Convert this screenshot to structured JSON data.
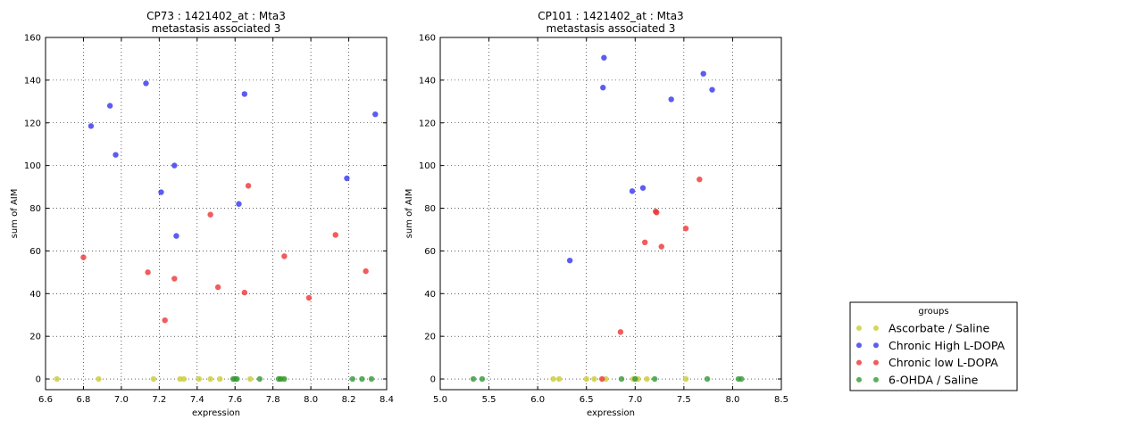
{
  "legend": {
    "title": "groups",
    "placement": "lower-right (outside plots)",
    "entries": [
      {
        "label": "Ascorbate / Saline",
        "color": "#cccc33"
      },
      {
        "label": "Chronic High L-DOPA",
        "color": "#3333ee"
      },
      {
        "label": "Chronic low L-DOPA",
        "color": "#ee3333"
      },
      {
        "label": "6-OHDA / Saline",
        "color": "#339933"
      }
    ]
  },
  "chart_data": [
    {
      "type": "scatter",
      "title": "CP73 : 1421402_at : Mta3",
      "subtitle": "metastasis associated 3",
      "xlabel": "expression",
      "ylabel": "sum of AIM",
      "xlim": [
        6.6,
        8.4
      ],
      "ylim": [
        -5,
        160
      ],
      "xticks": [
        6.6,
        6.8,
        7.0,
        7.2,
        7.4,
        7.6,
        7.8,
        8.0,
        8.2,
        8.4
      ],
      "xtick_labels": [
        "6.6",
        "6.8",
        "7.0",
        "7.2",
        "7.4",
        "7.6",
        "7.8",
        "8.0",
        "8.2",
        "8.4"
      ],
      "yticks": [
        0,
        20,
        40,
        60,
        80,
        100,
        120,
        140,
        160
      ],
      "ytick_labels": [
        "0",
        "20",
        "40",
        "60",
        "80",
        "100",
        "120",
        "140",
        "160"
      ],
      "grid": true,
      "series": [
        {
          "name": "Ascorbate / Saline",
          "color": "#cccc33",
          "points": [
            [
              6.66,
              0
            ],
            [
              6.88,
              0
            ],
            [
              7.17,
              0
            ],
            [
              7.31,
              0
            ],
            [
              7.33,
              0
            ],
            [
              7.41,
              0
            ],
            [
              7.47,
              0
            ],
            [
              7.52,
              0
            ],
            [
              7.68,
              0
            ],
            [
              7.85,
              0
            ]
          ]
        },
        {
          "name": "Chronic High L-DOPA",
          "color": "#3333ee",
          "points": [
            [
              6.84,
              118.5
            ],
            [
              6.94,
              128
            ],
            [
              6.97,
              105
            ],
            [
              7.13,
              138.5
            ],
            [
              7.21,
              87.5
            ],
            [
              7.28,
              100
            ],
            [
              7.29,
              67
            ],
            [
              7.62,
              82
            ],
            [
              7.65,
              133.5
            ],
            [
              8.19,
              94
            ],
            [
              8.34,
              124
            ]
          ]
        },
        {
          "name": "Chronic low L-DOPA",
          "color": "#ee3333",
          "points": [
            [
              6.8,
              57
            ],
            [
              7.14,
              50
            ],
            [
              7.23,
              27.5
            ],
            [
              7.28,
              47
            ],
            [
              7.47,
              77
            ],
            [
              7.51,
              43
            ],
            [
              7.65,
              40.5
            ],
            [
              7.67,
              90.5
            ],
            [
              7.86,
              57.5
            ],
            [
              7.99,
              38
            ],
            [
              8.13,
              67.5
            ],
            [
              8.29,
              50.5
            ]
          ]
        },
        {
          "name": "6-OHDA / Saline",
          "color": "#339933",
          "points": [
            [
              7.59,
              0
            ],
            [
              7.6,
              0
            ],
            [
              7.61,
              0
            ],
            [
              7.73,
              0
            ],
            [
              7.83,
              0
            ],
            [
              7.84,
              0
            ],
            [
              7.86,
              0
            ],
            [
              8.22,
              0
            ],
            [
              8.27,
              0
            ],
            [
              8.32,
              0
            ]
          ]
        }
      ]
    },
    {
      "type": "scatter",
      "title": "CP101 : 1421402_at : Mta3",
      "subtitle": "metastasis associated 3",
      "xlabel": "expression",
      "ylabel": "sum of AIM",
      "xlim": [
        5.0,
        8.5
      ],
      "ylim": [
        -5,
        160
      ],
      "xticks": [
        5.0,
        5.5,
        6.0,
        6.5,
        7.0,
        7.5,
        8.0,
        8.5
      ],
      "xtick_labels": [
        "5.0",
        "5.5",
        "6.0",
        "6.5",
        "7.0",
        "7.5",
        "8.0",
        "8.5"
      ],
      "yticks": [
        0,
        20,
        40,
        60,
        80,
        100,
        120,
        140,
        160
      ],
      "ytick_labels": [
        "0",
        "20",
        "40",
        "60",
        "80",
        "100",
        "120",
        "140",
        "160"
      ],
      "grid": true,
      "series": [
        {
          "name": "Ascorbate / Saline",
          "color": "#cccc33",
          "points": [
            [
              6.16,
              0
            ],
            [
              6.22,
              0
            ],
            [
              6.5,
              0
            ],
            [
              6.58,
              0
            ],
            [
              6.7,
              0
            ],
            [
              6.98,
              0
            ],
            [
              7.03,
              0
            ],
            [
              7.12,
              0
            ],
            [
              7.52,
              0
            ]
          ]
        },
        {
          "name": "Chronic High L-DOPA",
          "color": "#3333ee",
          "points": [
            [
              6.33,
              55.5
            ],
            [
              6.67,
              136.5
            ],
            [
              6.68,
              150.5
            ],
            [
              6.97,
              88
            ],
            [
              7.08,
              89.5
            ],
            [
              7.37,
              131
            ],
            [
              7.7,
              143
            ],
            [
              7.79,
              135.5
            ]
          ]
        },
        {
          "name": "Chronic low L-DOPA",
          "color": "#ee3333",
          "points": [
            [
              6.66,
              0
            ],
            [
              6.85,
              22
            ],
            [
              7.1,
              64
            ],
            [
              7.21,
              78.5
            ],
            [
              7.22,
              78
            ],
            [
              7.27,
              62
            ],
            [
              7.52,
              70.5
            ],
            [
              7.66,
              93.5
            ]
          ]
        },
        {
          "name": "6-OHDA / Saline",
          "color": "#339933",
          "points": [
            [
              5.34,
              0
            ],
            [
              5.43,
              0
            ],
            [
              6.86,
              0
            ],
            [
              7.0,
              0
            ],
            [
              7.2,
              0
            ],
            [
              7.74,
              0
            ],
            [
              8.06,
              0
            ],
            [
              8.09,
              0
            ]
          ]
        }
      ]
    }
  ]
}
